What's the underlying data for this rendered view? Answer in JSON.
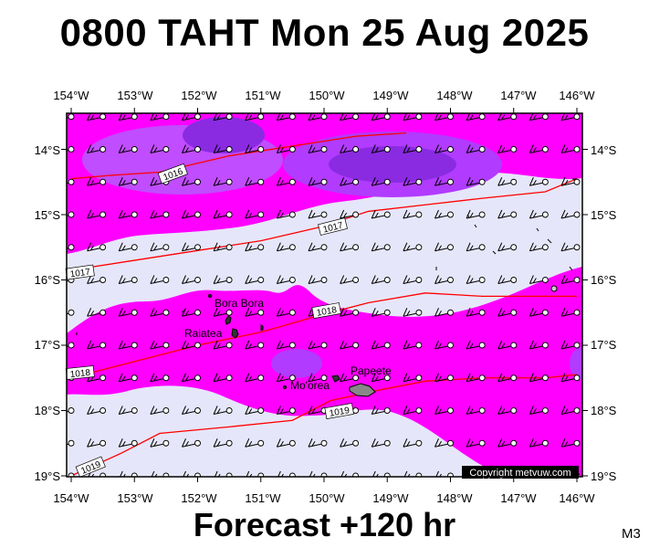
{
  "header": {
    "title": "0800 TAHT Mon 25 Aug 2025"
  },
  "footer": {
    "forecast_label": "Forecast +120 hr",
    "model_code": "M3"
  },
  "map": {
    "lon_labels": [
      "154°W",
      "153°W",
      "152°W",
      "151°W",
      "150°W",
      "149°W",
      "148°W",
      "147°W",
      "146°W"
    ],
    "lat_labels": [
      "14°S",
      "15°S",
      "16°S",
      "17°S",
      "18°S",
      "19°S"
    ],
    "lat_labels_right": [
      "14°S",
      "15°S",
      "16°S",
      "17°S",
      "18°S",
      "19°S"
    ],
    "isobar_labels": [
      "1016",
      "1017",
      "1017",
      "1018",
      "1018",
      "1019",
      "1019"
    ],
    "place_labels": [
      "Bora Bora",
      "Raiatea",
      "Papeete",
      "Mo'orea"
    ],
    "copyright": "Copyright metvuw.com",
    "colors": {
      "background_field": "#e6e6fa",
      "rain_magenta": "#ff00ff",
      "rain_purple": "#b13bff",
      "rain_violet": "#8a2be2",
      "isobar": "#ff0000",
      "frame": "#000000"
    },
    "isobars": [
      {
        "value": 1016,
        "points": [
          [
            -154,
            14.45
          ],
          [
            -153.4,
            14.4
          ],
          [
            -152.6,
            14.35
          ],
          [
            -151.5,
            14.1
          ],
          [
            -150.5,
            13.95
          ],
          [
            -149.5,
            13.8
          ],
          [
            -148.7,
            13.75
          ]
        ]
      },
      {
        "value": 1017,
        "points": [
          [
            -154,
            15.85
          ],
          [
            -153,
            15.7
          ],
          [
            -152,
            15.55
          ],
          [
            -151,
            15.4
          ],
          [
            -150.1,
            15.2
          ],
          [
            -149.3,
            14.95
          ],
          [
            -148.4,
            14.85
          ],
          [
            -147.5,
            14.75
          ],
          [
            -146.5,
            14.65
          ],
          [
            -146,
            14.45
          ]
        ]
      },
      {
        "value": 1018,
        "points": [
          [
            -154,
            17.5
          ],
          [
            -153,
            17.25
          ],
          [
            -152,
            17.0
          ],
          [
            -151,
            16.8
          ],
          [
            -150.1,
            16.55
          ],
          [
            -149.3,
            16.35
          ],
          [
            -148.4,
            16.2
          ],
          [
            -147.5,
            16.25
          ],
          [
            -146.6,
            16.25
          ],
          [
            -146,
            16.25
          ]
        ]
      },
      {
        "value": 1019,
        "points": [
          [
            -154,
            19.0
          ],
          [
            -153.2,
            18.65
          ],
          [
            -152.6,
            18.35
          ],
          [
            -151.5,
            18.25
          ],
          [
            -150.5,
            18.15
          ],
          [
            -149.9,
            17.85
          ],
          [
            -149.2,
            17.7
          ],
          [
            -148.4,
            17.55
          ],
          [
            -147.5,
            17.5
          ],
          [
            -146.5,
            17.5
          ],
          [
            -146,
            17.45
          ]
        ]
      }
    ],
    "wind_barb_speed_kt": 10,
    "wind_barb_from": "east-southeast"
  }
}
